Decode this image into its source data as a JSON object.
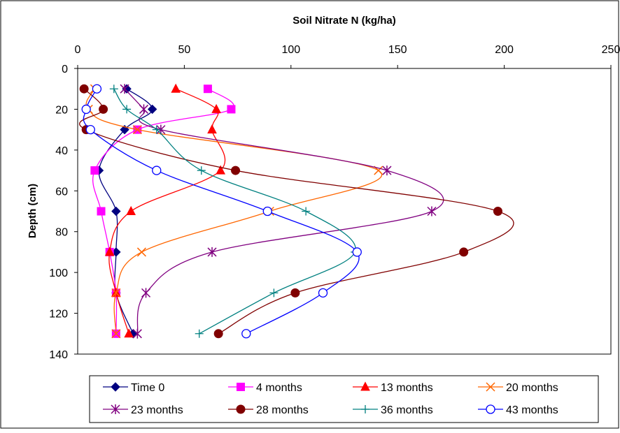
{
  "chart_data": {
    "type": "scatter",
    "xlabel": "Soil Nitrate N (kg/ha)",
    "ylabel": "Depth (cm)",
    "xlim": [
      0,
      250
    ],
    "ylim": [
      0,
      140
    ],
    "x_axis_position": "top",
    "y_axis_inverted": true,
    "x_ticks": [
      0,
      50,
      100,
      150,
      200,
      250
    ],
    "y_ticks": [
      0,
      20,
      40,
      60,
      80,
      100,
      120,
      140
    ],
    "x_tick_labels": [
      "0",
      "50",
      "100",
      "150",
      "200",
      "250"
    ],
    "y_tick_labels": [
      "0",
      "20",
      "40",
      "60",
      "80",
      "100",
      "120",
      "140"
    ],
    "grid": false,
    "legend_position": "bottom",
    "series": [
      {
        "name": "Time 0",
        "color": "#000080",
        "marker": "diamond",
        "points": [
          [
            23,
            10
          ],
          [
            35,
            20
          ],
          [
            22,
            30
          ],
          [
            10,
            50
          ],
          [
            18,
            70
          ],
          [
            18,
            90
          ],
          [
            18,
            110
          ],
          [
            26,
            130
          ]
        ]
      },
      {
        "name": "4 months",
        "color": "#FF00FF",
        "marker": "square",
        "points": [
          [
            61,
            10
          ],
          [
            72,
            20
          ],
          [
            28,
            30
          ],
          [
            8,
            50
          ],
          [
            11,
            70
          ],
          [
            15,
            90
          ],
          [
            18,
            110
          ],
          [
            18,
            130
          ]
        ]
      },
      {
        "name": "13 months",
        "color": "#FF0000",
        "marker": "triangle",
        "points": [
          [
            46,
            10
          ],
          [
            65,
            20
          ],
          [
            63,
            30
          ],
          [
            67,
            50
          ],
          [
            25,
            70
          ],
          [
            15,
            90
          ],
          [
            18,
            110
          ],
          [
            24,
            130
          ]
        ]
      },
      {
        "name": "20 months",
        "color": "#FF6600",
        "marker": "x",
        "points": [
          [
            8,
            10
          ],
          [
            5,
            20
          ],
          [
            28,
            30
          ],
          [
            141,
            50
          ],
          [
            90,
            70
          ],
          [
            30,
            90
          ],
          [
            18,
            110
          ],
          [
            18,
            130
          ]
        ]
      },
      {
        "name": "23 months",
        "color": "#800080",
        "marker": "asterisk",
        "points": [
          [
            22,
            10
          ],
          [
            31,
            20
          ],
          [
            39,
            30
          ],
          [
            145,
            50
          ],
          [
            166,
            70
          ],
          [
            63,
            90
          ],
          [
            32,
            110
          ],
          [
            28,
            130
          ]
        ]
      },
      {
        "name": "28 months",
        "color": "#800000",
        "marker": "circle",
        "points": [
          [
            3,
            10
          ],
          [
            12,
            20
          ],
          [
            4,
            30
          ],
          [
            74,
            50
          ],
          [
            197,
            70
          ],
          [
            181,
            90
          ],
          [
            102,
            110
          ],
          [
            66,
            130
          ]
        ]
      },
      {
        "name": "36 months",
        "color": "#008080",
        "marker": "plus",
        "points": [
          [
            17,
            10
          ],
          [
            23,
            20
          ],
          [
            37,
            30
          ],
          [
            58,
            50
          ],
          [
            107,
            70
          ],
          [
            130,
            90
          ],
          [
            92,
            110
          ],
          [
            57,
            130
          ]
        ]
      },
      {
        "name": "43 months",
        "color": "#0000FF",
        "marker": "open-circle",
        "points": [
          [
            9,
            10
          ],
          [
            4,
            20
          ],
          [
            6,
            30
          ],
          [
            37,
            50
          ],
          [
            89,
            70
          ],
          [
            131,
            90
          ],
          [
            115,
            110
          ],
          [
            79,
            130
          ]
        ]
      }
    ]
  }
}
